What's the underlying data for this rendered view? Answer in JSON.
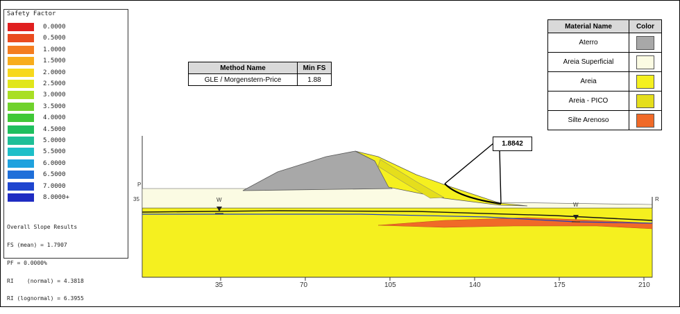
{
  "legend": {
    "title": "Safety Factor",
    "items": [
      {
        "label": "0.0000",
        "color": "#e01f1f"
      },
      {
        "label": "0.5000",
        "color": "#ea4b1f"
      },
      {
        "label": "1.0000",
        "color": "#f47d20"
      },
      {
        "label": "1.5000",
        "color": "#f8ad1c"
      },
      {
        "label": "2.0000",
        "color": "#f7d81c"
      },
      {
        "label": "2.5000",
        "color": "#e1e61b"
      },
      {
        "label": "3.0000",
        "color": "#a9df24"
      },
      {
        "label": "3.5000",
        "color": "#6fd22c"
      },
      {
        "label": "4.0000",
        "color": "#3fc837"
      },
      {
        "label": "4.5000",
        "color": "#1fbf5e"
      },
      {
        "label": "5.0000",
        "color": "#1ebf97"
      },
      {
        "label": "5.5000",
        "color": "#1dbfc8"
      },
      {
        "label": "6.0000",
        "color": "#1fa2de"
      },
      {
        "label": "6.5000",
        "color": "#1f6fd9"
      },
      {
        "label": "7.0000",
        "color": "#1f45cf"
      },
      {
        "label": "8.0000+",
        "color": "#1f2cc2"
      }
    ],
    "stats": [
      "Overall Slope Results",
      "FS (mean) = 1.7907",
      "PF = 0.0000%",
      "RI    (normal) = 4.3818",
      "RI (lognormal) = 6.3955"
    ]
  },
  "method_table": {
    "header_name": "Method Name",
    "header_value": "Min FS",
    "row_name": "GLE / Morgenstern-Price",
    "row_value": "1.88"
  },
  "material_table": {
    "header_name": "Material Name",
    "header_color": "Color",
    "rows": [
      {
        "name": "Aterro",
        "color": "#a8a8a8"
      },
      {
        "name": "Areia Superficial",
        "color": "#fbfbe3"
      },
      {
        "name": "Areia",
        "color": "#f5f01f"
      },
      {
        "name": "Areia - PICO",
        "color": "#e5de1c"
      },
      {
        "name": "Silte Arenoso",
        "color": "#f06a28"
      }
    ]
  },
  "critical_label": "1.8842",
  "axis": {
    "x_ticks": [
      "35",
      "70",
      "105",
      "140",
      "175",
      "210"
    ],
    "y_tick": "35"
  },
  "markers": {
    "left_top": "P",
    "right_top": "R",
    "water_left": "W",
    "water_right": "W"
  }
}
